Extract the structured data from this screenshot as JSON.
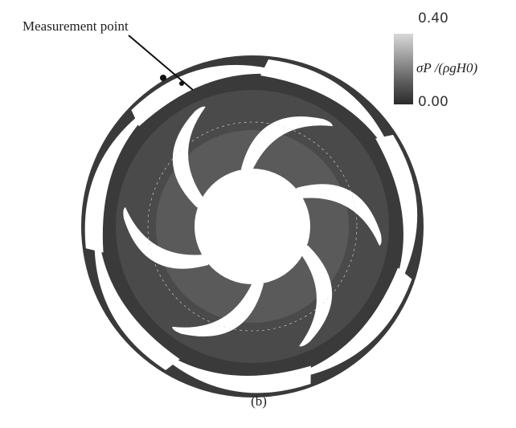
{
  "annotation": "Measurement point",
  "colorbar": {
    "max_label": "0.40",
    "min_label": "0.00",
    "title": "σP /(ρgH0)"
  },
  "caption": "(b)"
}
